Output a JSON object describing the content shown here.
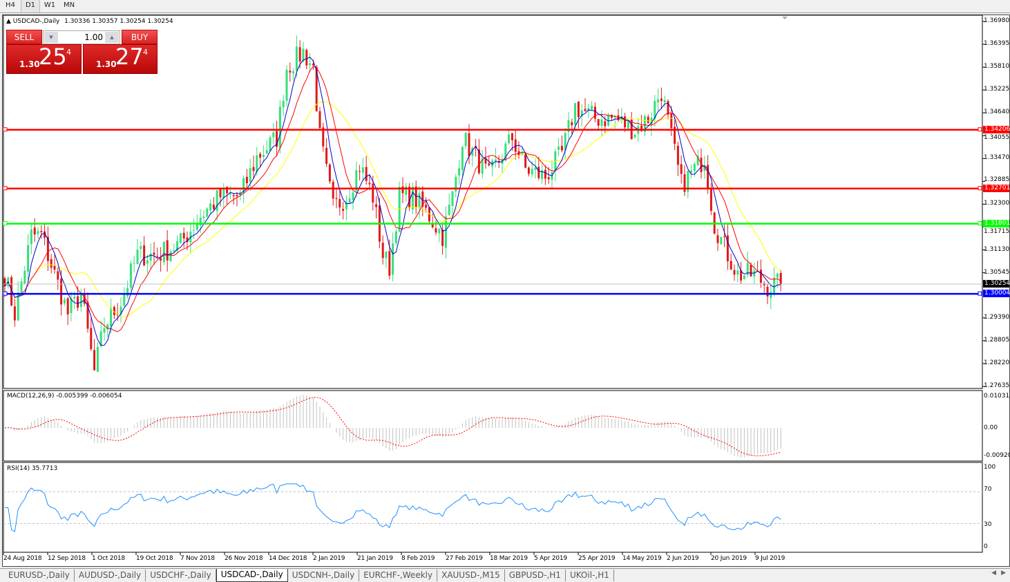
{
  "timeframes": [
    "H4",
    "D1",
    "W1",
    "MN"
  ],
  "active_timeframe": "D1",
  "chart": {
    "title": "USDCAD-,Daily",
    "ohlc": "1.30336 1.30357 1.30254 1.30254"
  },
  "trade": {
    "sell_label": "SELL",
    "buy_label": "BUY",
    "volume": "1.00",
    "sell_prefix": "1.30",
    "sell_big": "25",
    "sell_sup": "4",
    "buy_prefix": "1.30",
    "buy_big": "27",
    "buy_sup": "4"
  },
  "price_axis": [
    "1.36980",
    "1.36395",
    "1.35810",
    "1.35225",
    "1.34640",
    "1.34055",
    "1.33470",
    "1.32885",
    "1.32300",
    "1.31715",
    "1.31130",
    "1.30545",
    "1.29390",
    "1.28805",
    "1.28220",
    "1.27635"
  ],
  "horizontal_lines": [
    {
      "price": "1.34206",
      "color": "#ff0000"
    },
    {
      "price": "1.32701",
      "color": "#ff0000"
    },
    {
      "price": "1.31801",
      "color": "#00ff00"
    },
    {
      "price": "1.30004",
      "color": "#0000ff"
    }
  ],
  "current_price": "1.30254",
  "macd": {
    "label": "MACD(12,26,9) -0.005399 -0.006054",
    "axis": [
      "0.010311",
      "0.00",
      "-0.00920"
    ]
  },
  "rsi": {
    "label": "RSI(14) 35.7713",
    "axis": [
      "100",
      "70",
      "30",
      "0"
    ]
  },
  "dates": [
    "24 Aug 2018",
    "12 Sep 2018",
    "1 Oct 2018",
    "19 Oct 2018",
    "7 Nov 2018",
    "26 Nov 2018",
    "14 Dec 2018",
    "2 Jan 2019",
    "21 Jan 2019",
    "8 Feb 2019",
    "27 Feb 2019",
    "18 Mar 2019",
    "5 Apr 2019",
    "25 Apr 2019",
    "14 May 2019",
    "2 Jun 2019",
    "20 Jun 2019",
    "9 Jul 2019"
  ],
  "tabs": [
    "EURUSD-,Daily",
    "AUDUSD-,Daily",
    "USDCHF-,Daily",
    "USDCAD-,Daily",
    "USDCNH-,Daily",
    "EURCHF-,Weekly",
    "XAUUSD-,M15",
    "GBPUSD-,H1",
    "UKOil-,H1"
  ],
  "active_tab": "USDCAD-,Daily",
  "colors": {
    "bull": "#33e07a",
    "bear": "#e01818",
    "ma_fast": "#0000cc",
    "ma_mid": "#ff0000",
    "ma_slow": "#ffff00",
    "macd_hist": "#c0c0c0",
    "macd_signal": "#ff0000",
    "rsi": "#1e90ff"
  },
  "chart_data": {
    "type": "candlestick",
    "approx_close_path": [
      [
        0,
        1.305
      ],
      [
        3,
        1.295
      ],
      [
        8,
        1.315
      ],
      [
        11,
        1.315
      ],
      [
        15,
        1.305
      ],
      [
        19,
        1.295
      ],
      [
        23,
        1.3
      ],
      [
        27,
        1.28
      ],
      [
        30,
        1.292
      ],
      [
        35,
        1.298
      ],
      [
        40,
        1.31
      ],
      [
        46,
        1.31
      ],
      [
        53,
        1.313
      ],
      [
        59,
        1.32
      ],
      [
        65,
        1.325
      ],
      [
        71,
        1.325
      ],
      [
        76,
        1.335
      ],
      [
        82,
        1.34
      ],
      [
        85,
        1.358
      ],
      [
        90,
        1.362
      ],
      [
        93,
        1.358
      ],
      [
        95,
        1.34
      ],
      [
        99,
        1.322
      ],
      [
        103,
        1.325
      ],
      [
        107,
        1.333
      ],
      [
        111,
        1.325
      ],
      [
        114,
        1.31
      ],
      [
        116,
        1.307
      ],
      [
        119,
        1.325
      ],
      [
        123,
        1.325
      ],
      [
        128,
        1.32
      ],
      [
        132,
        1.315
      ],
      [
        135,
        1.325
      ],
      [
        138,
        1.34
      ],
      [
        142,
        1.335
      ],
      [
        146,
        1.33
      ],
      [
        153,
        1.34
      ],
      [
        157,
        1.332
      ],
      [
        163,
        1.33
      ],
      [
        168,
        1.336
      ],
      [
        172,
        1.348
      ],
      [
        178,
        1.345
      ],
      [
        184,
        1.345
      ],
      [
        190,
        1.342
      ],
      [
        194,
        1.345
      ],
      [
        198,
        1.352
      ],
      [
        201,
        1.34
      ],
      [
        204,
        1.328
      ],
      [
        208,
        1.332
      ],
      [
        211,
        1.335
      ],
      [
        214,
        1.318
      ],
      [
        217,
        1.312
      ],
      [
        221,
        1.305
      ],
      [
        226,
        1.305
      ],
      [
        230,
        1.302
      ],
      [
        234,
        1.30254
      ]
    ]
  }
}
